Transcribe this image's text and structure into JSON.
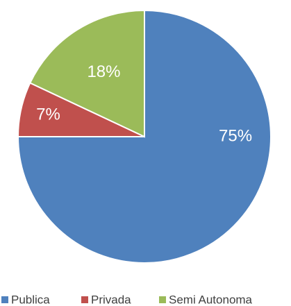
{
  "chart_data": {
    "type": "pie",
    "categories": [
      "Publica",
      "Privada",
      "Semi Autonoma"
    ],
    "values": [
      75,
      7,
      18
    ],
    "value_labels": [
      "75%",
      "7%",
      "18%"
    ],
    "colors": [
      "#4f81bd",
      "#c0504d",
      "#9bbb59"
    ],
    "legend": "bottom"
  }
}
